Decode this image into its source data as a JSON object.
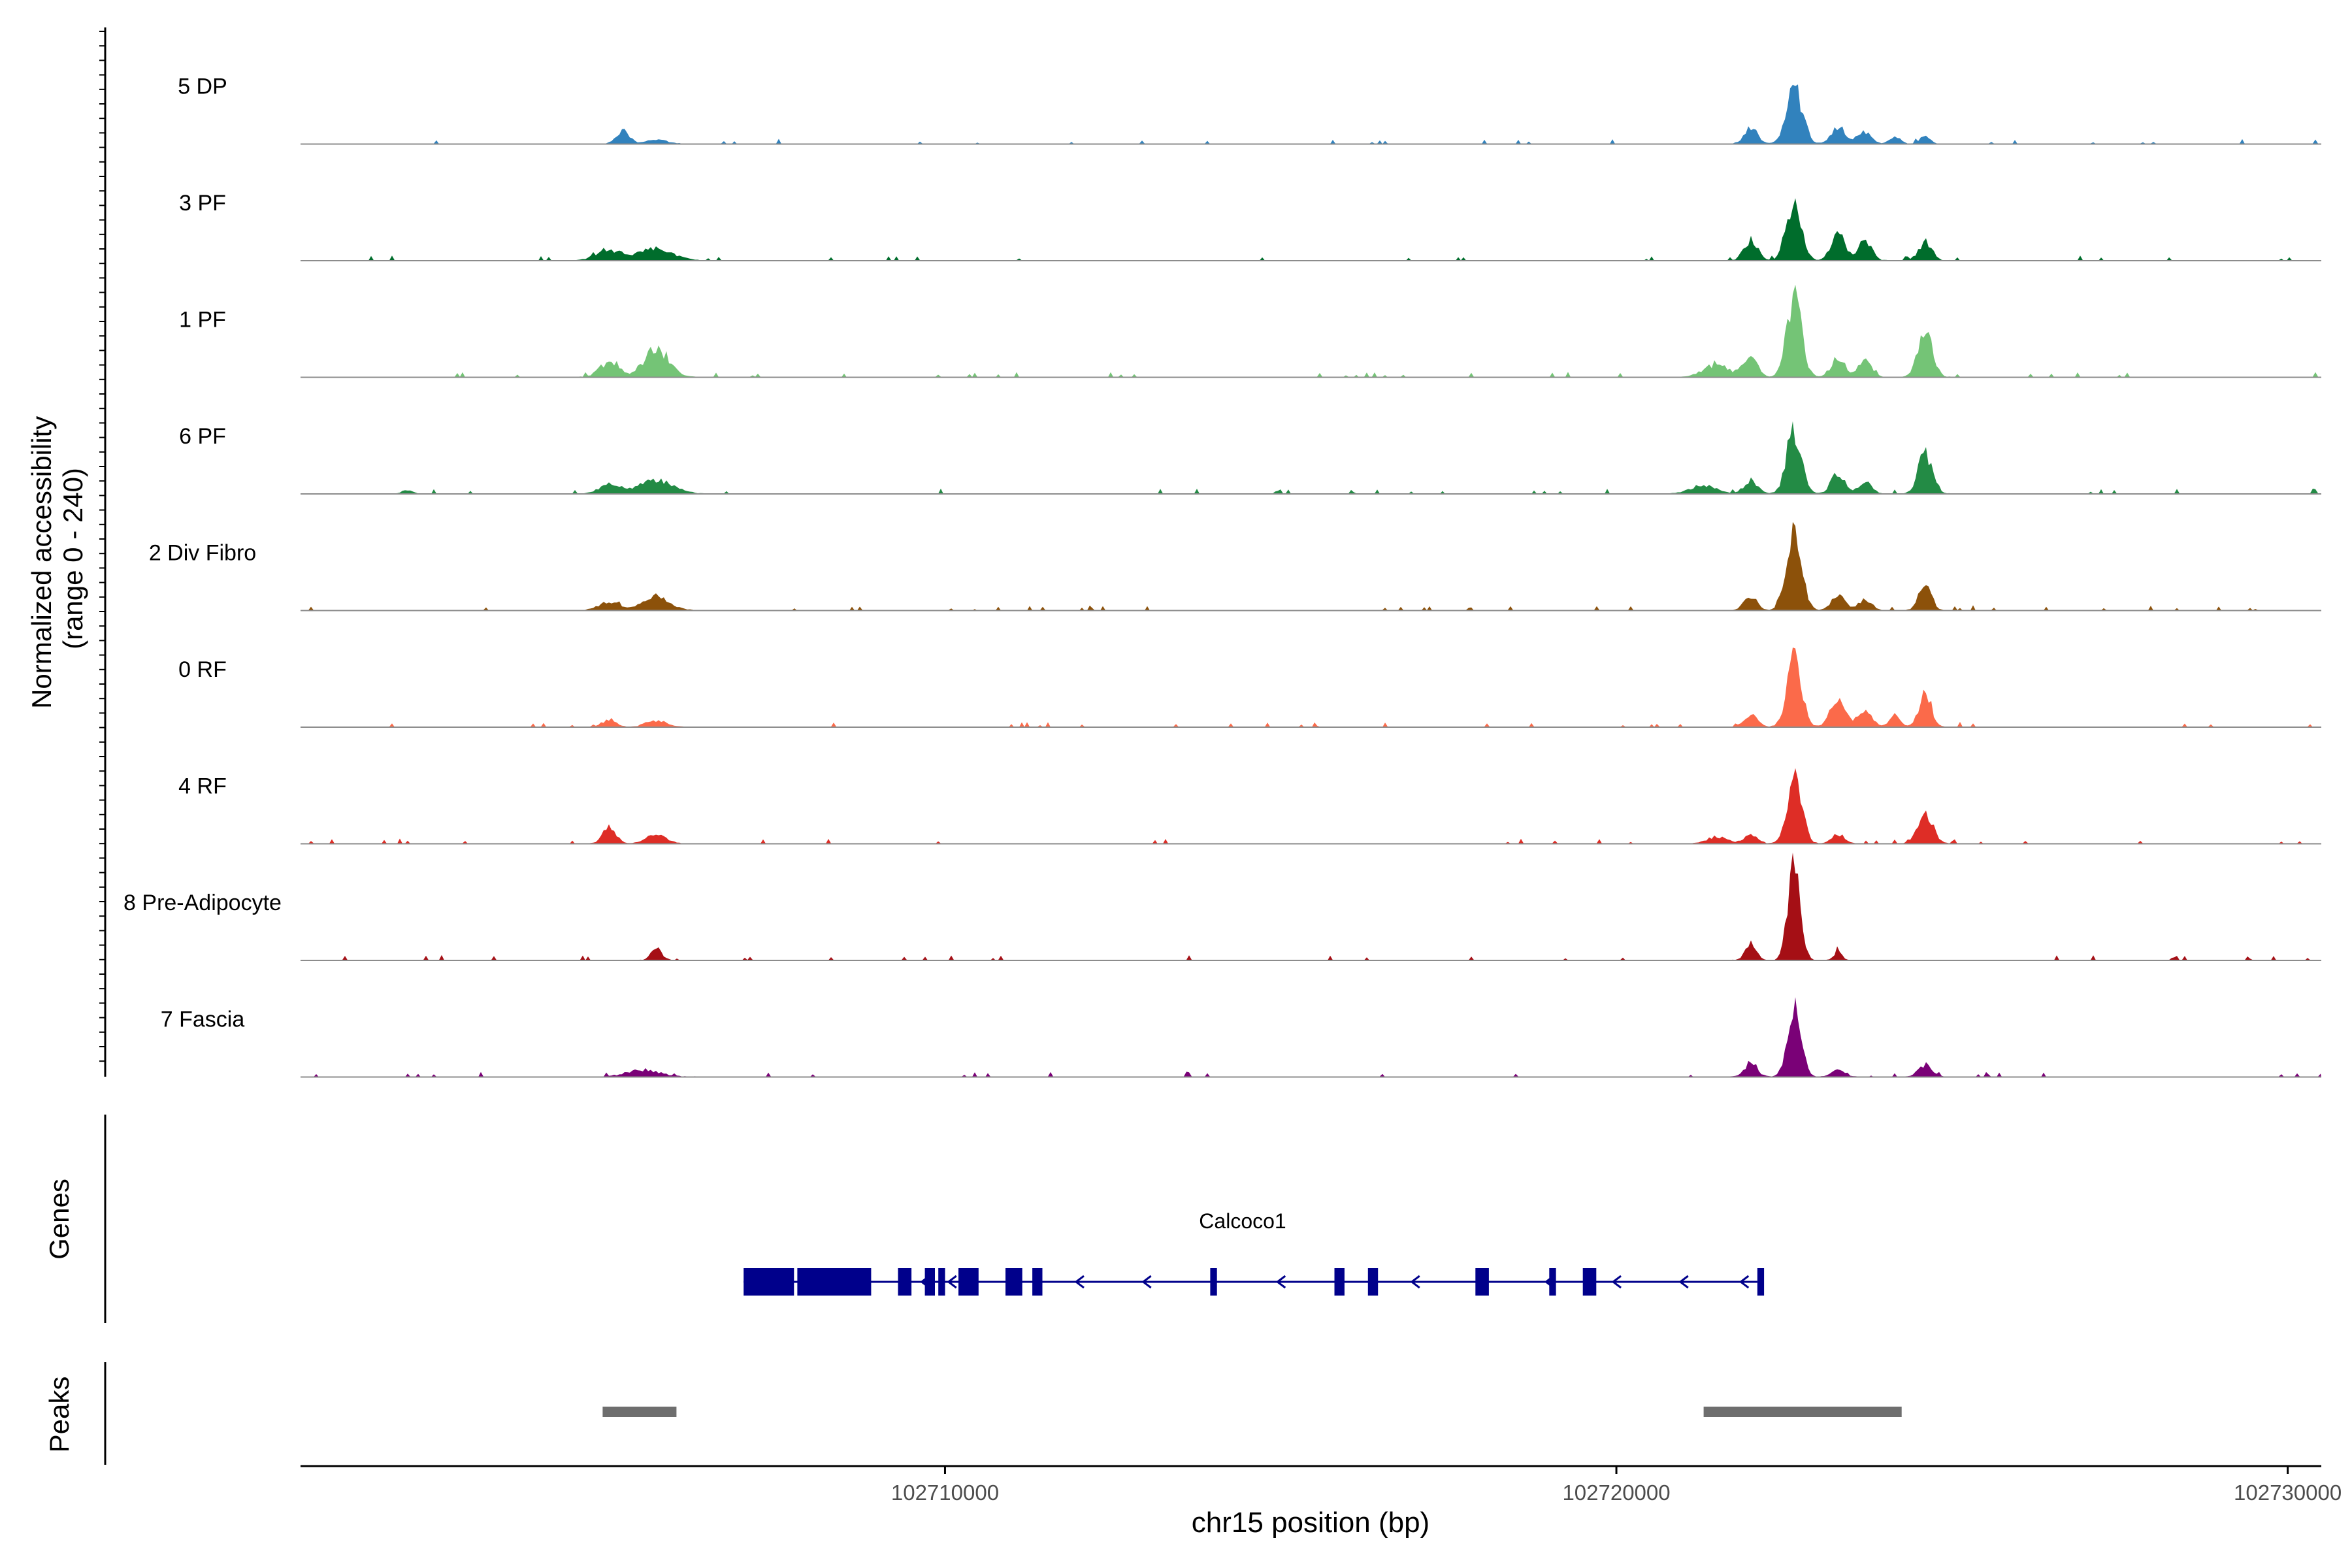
{
  "chart_data": {
    "type": "area",
    "title": "",
    "xlabel": "chr15 position (bp)",
    "ylabel": "Normalized accessibility\n(range 0 - 240)",
    "ylabel_lines": [
      "Normalized accessibility",
      "(range 0 - 240)"
    ],
    "xlim": [
      102700400,
      102730500
    ],
    "ylim": [
      0,
      240
    ],
    "x_ticks": [
      102710000,
      102720000,
      102730000
    ],
    "x_tick_labels": [
      "102710000",
      "102720000",
      "102730000"
    ],
    "tracks": [
      {
        "name": "5 DP",
        "color": "#3182BD",
        "peaks": [
          [
            102705200,
            28,
            100
          ],
          [
            102705700,
            10,
            150
          ],
          [
            102722000,
            35,
            100
          ],
          [
            102722650,
            120,
            120
          ],
          [
            102723300,
            40,
            100
          ],
          [
            102723700,
            25,
            100
          ],
          [
            102724150,
            15,
            80
          ],
          [
            102724600,
            20,
            70
          ]
        ]
      },
      {
        "name": "3 PF",
        "color": "#006D2C",
        "peaks": [
          [
            102705000,
            20,
            200
          ],
          [
            102705700,
            25,
            250
          ],
          [
            102722000,
            45,
            100
          ],
          [
            102722650,
            140,
            110
          ],
          [
            102723300,
            65,
            100
          ],
          [
            102723700,
            45,
            100
          ],
          [
            102724600,
            40,
            100
          ]
        ]
      },
      {
        "name": "1 PF",
        "color": "#74C476",
        "peaks": [
          [
            102705000,
            30,
            150
          ],
          [
            102705700,
            65,
            180
          ],
          [
            102721500,
            25,
            200
          ],
          [
            102722000,
            45,
            100
          ],
          [
            102722650,
            175,
            110
          ],
          [
            102723300,
            45,
            100
          ],
          [
            102723700,
            35,
            100
          ],
          [
            102724600,
            100,
            110
          ]
        ]
      },
      {
        "name": "6 PF",
        "color": "#238B45",
        "peaks": [
          [
            102702000,
            8,
            80
          ],
          [
            102705000,
            20,
            150
          ],
          [
            102705700,
            30,
            250
          ],
          [
            102721300,
            20,
            180
          ],
          [
            102722000,
            30,
            100
          ],
          [
            102722650,
            145,
            110
          ],
          [
            102723300,
            45,
            100
          ],
          [
            102723700,
            25,
            100
          ],
          [
            102724600,
            95,
            100
          ]
        ]
      },
      {
        "name": "2 Div Fibro",
        "color": "#8C510A",
        "peaks": [
          [
            102705000,
            18,
            150
          ],
          [
            102705700,
            30,
            200
          ],
          [
            102722000,
            30,
            100
          ],
          [
            102722650,
            195,
            110
          ],
          [
            102723300,
            35,
            100
          ],
          [
            102723700,
            25,
            100
          ],
          [
            102724600,
            60,
            90
          ]
        ]
      },
      {
        "name": "0 RF",
        "color": "#FB6A4A",
        "peaks": [
          [
            102705000,
            15,
            100
          ],
          [
            102705700,
            15,
            150
          ],
          [
            102722000,
            25,
            100
          ],
          [
            102722650,
            150,
            110
          ],
          [
            102723300,
            60,
            110
          ],
          [
            102723700,
            40,
            100
          ],
          [
            102724150,
            30,
            80
          ],
          [
            102724600,
            80,
            90
          ]
        ]
      },
      {
        "name": "4 RF",
        "color": "#DE2D26",
        "peaks": [
          [
            102705000,
            35,
            100
          ],
          [
            102705700,
            20,
            150
          ],
          [
            102721500,
            15,
            150
          ],
          [
            102722000,
            20,
            100
          ],
          [
            102722650,
            145,
            110
          ],
          [
            102723300,
            20,
            100
          ],
          [
            102724600,
            70,
            110
          ]
        ]
      },
      {
        "name": "8 Pre-Adipocyte",
        "color": "#A50F15",
        "peaks": [
          [
            102705700,
            25,
            80
          ],
          [
            102722000,
            35,
            80
          ],
          [
            102722650,
            225,
            90
          ],
          [
            102723300,
            20,
            60
          ]
        ]
      },
      {
        "name": "7 Fascia",
        "color": "#7A0177",
        "peaks": [
          [
            102705500,
            15,
            250
          ],
          [
            102722000,
            25,
            100
          ],
          [
            102722650,
            165,
            100
          ],
          [
            102723300,
            15,
            100
          ],
          [
            102724600,
            25,
            100
          ]
        ]
      }
    ],
    "gene": {
      "name": "Calcoco1",
      "color": "#00008B",
      "strand": "-",
      "line": [
        102707000,
        102722100
      ],
      "exons": [
        [
          102707000,
          102707750
        ],
        [
          102707800,
          102708900
        ],
        [
          102709300,
          102709500
        ],
        [
          102709700,
          102709850
        ],
        [
          102709900,
          102710000
        ],
        [
          102710200,
          102710500
        ],
        [
          102710900,
          102711150
        ],
        [
          102711300,
          102711450
        ],
        [
          102713950,
          102714050
        ],
        [
          102715800,
          102715950
        ],
        [
          102716300,
          102716450
        ],
        [
          102717900,
          102718100
        ],
        [
          102719000,
          102719100
        ],
        [
          102719500,
          102719700
        ],
        [
          102722100,
          102722200
        ]
      ]
    },
    "peak_regions": [
      [
        102704900,
        102706000
      ],
      [
        102721300,
        102724250
      ]
    ],
    "peak_color": "#6E6E6E",
    "panel_labels": {
      "genes": "Genes",
      "peaks": "Peaks"
    }
  }
}
